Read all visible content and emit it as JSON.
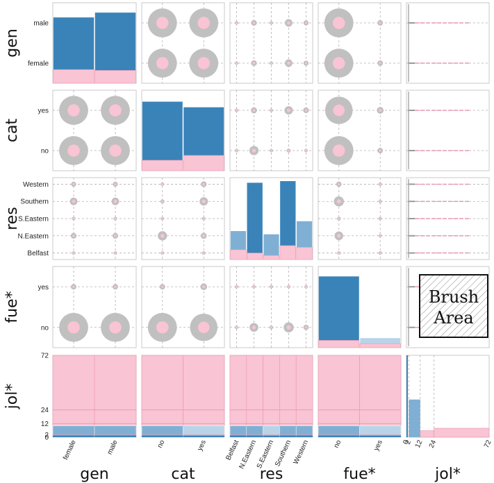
{
  "chart_data": {
    "type": "scatterplot-matrix",
    "title": "",
    "variables": [
      {
        "name": "gen",
        "kind": "categorical",
        "levels": [
          "female",
          "male"
        ]
      },
      {
        "name": "cat",
        "kind": "categorical",
        "levels": [
          "no",
          "yes"
        ]
      },
      {
        "name": "res",
        "kind": "categorical",
        "levels": [
          "Belfast",
          "N.Eastern",
          "S.Eastern",
          "Southern",
          "Western"
        ]
      },
      {
        "name": "fue*",
        "kind": "categorical",
        "levels": [
          "no",
          "yes"
        ]
      },
      {
        "name": "jol*",
        "kind": "numeric",
        "ticks": [
          0,
          2,
          12,
          24,
          72
        ],
        "range": [
          0,
          72
        ]
      }
    ],
    "colors": {
      "bar": "#3a83b9",
      "bar_light": "#7fb0d4",
      "bar_pale": "#b8d4e8",
      "highlight": "#f9c4d3",
      "highlight_line": "#ea97ae",
      "circle": "#c0c0c0",
      "grid": "#b0b0b0"
    },
    "diagonal_bars": {
      "gen": {
        "values": [
          0.82,
          0.88
        ],
        "highlight": [
          0.17,
          0.16
        ]
      },
      "cat": {
        "values": [
          0.86,
          0.79
        ],
        "highlight": [
          0.13,
          0.19
        ]
      },
      "res": {
        "values": [
          0.35,
          0.94,
          0.31,
          0.96,
          0.47
        ],
        "highlight": [
          0.12,
          0.08,
          0.05,
          0.17,
          0.15
        ],
        "shade": [
          "light",
          "dark",
          "light",
          "dark",
          "light"
        ]
      },
      "fue*": {
        "values": [
          0.88,
          0.12
        ],
        "highlight": [
          0.09,
          0.05
        ]
      },
      "jol*": {
        "bins": [
          [
            0,
            1,
            1.0
          ],
          [
            1,
            2,
            0.0
          ],
          [
            2,
            12,
            0.46
          ],
          [
            12,
            24,
            0.07
          ],
          [
            24,
            72,
            0.11
          ]
        ],
        "highlight": [
          [
            12,
            24,
            0.08
          ],
          [
            24,
            72,
            0.11
          ]
        ]
      }
    },
    "circle_sizes": {
      "gen|cat": [
        [
          0.95,
          0.95
        ],
        [
          0.95,
          0.95
        ]
      ],
      "gen|res": [
        [
          0.18,
          0.34,
          0.14,
          0.45,
          0.3
        ],
        [
          0.18,
          0.34,
          0.14,
          0.45,
          0.3
        ]
      ],
      "gen|fue*": [
        [
          0.95,
          0.18
        ],
        [
          0.95,
          0.18
        ]
      ],
      "cat|res": [
        [
          0.14,
          0.55,
          0.16,
          0.24,
          0.2
        ],
        [
          0.12,
          0.36,
          0.13,
          0.5,
          0.34
        ]
      ],
      "cat|fue*": [
        [
          0.95,
          0.18
        ],
        [
          0.9,
          0.22
        ]
      ],
      "res|fue*": [
        [
          0.2,
          0.14
        ],
        [
          0.52,
          0.14
        ],
        [
          0.22,
          0.12
        ],
        [
          0.6,
          0.18
        ],
        [
          0.32,
          0.14
        ]
      ]
    },
    "brush": {
      "label_line1": "Brush",
      "label_line2": "Area"
    }
  }
}
